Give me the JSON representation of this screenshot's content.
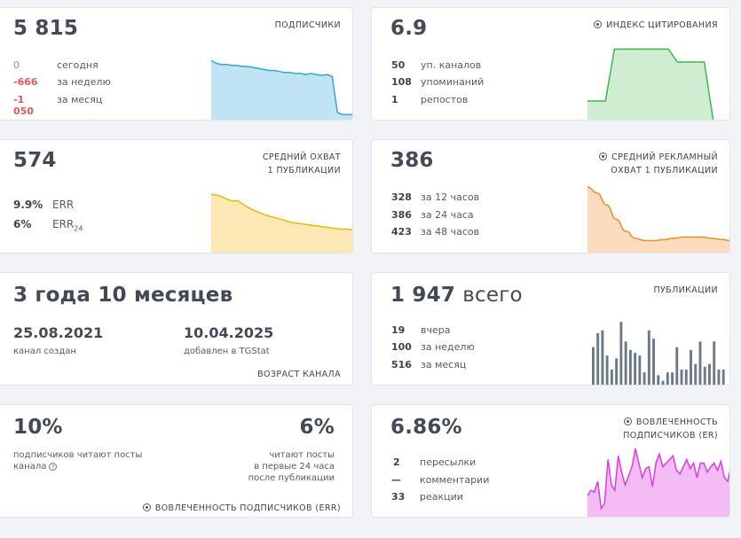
{
  "subscribers": {
    "value": "5 815",
    "caption": "ПОДПИСЧИКИ",
    "rows": [
      {
        "value": "0",
        "label": "сегодня"
      },
      {
        "value": "-666",
        "label": "за неделю"
      },
      {
        "value": "-1 050",
        "label": "за месяц"
      }
    ],
    "color": "#31a6d6",
    "series": [
      60,
      57,
      56,
      56,
      55,
      55,
      54,
      54,
      53,
      52,
      51,
      50,
      50,
      49,
      48,
      48,
      47,
      47,
      46,
      47,
      46,
      45,
      46,
      44,
      8,
      6,
      6,
      6
    ]
  },
  "citation": {
    "value": "6.9",
    "icon": "info-circle-icon",
    "caption": "ИНДЕКС ЦИТИРОВАНИЯ",
    "rows": [
      {
        "value": "50",
        "label": "уп. каналов"
      },
      {
        "value": "108",
        "label": "упоминаний"
      },
      {
        "value": "1",
        "label": "репостов"
      }
    ],
    "color": "#3db847",
    "series": [
      3,
      3,
      3,
      11,
      11,
      11,
      11,
      11,
      11,
      11,
      9,
      9,
      9,
      9,
      0,
      0,
      0
    ]
  },
  "avg_reach": {
    "value": "574",
    "caption_line1": "СРЕДНИЙ ОХВАТ",
    "caption_line2": "1 ПУБЛИКАЦИИ",
    "rows": [
      {
        "value": "9.9%",
        "label": "ERR"
      },
      {
        "value": "6%",
        "label": "ERR",
        "subscript": "24"
      }
    ],
    "color": "#f2b30b",
    "series": [
      62,
      61,
      58,
      55,
      55,
      50,
      46,
      43,
      40,
      38,
      36,
      34,
      32,
      31,
      30,
      29,
      28,
      27,
      26,
      25,
      25,
      24
    ]
  },
  "ad_reach": {
    "value": "386",
    "icon": "info-circle-icon",
    "caption_line1": "СРЕДНИЙ РЕКЛАМНЫЙ",
    "caption_line2": "ОХВАТ 1 ПУБЛИКАЦИИ",
    "rows": [
      {
        "value": "328",
        "label": "за 12 часов"
      },
      {
        "value": "386",
        "label": "за 24 часа"
      },
      {
        "value": "423",
        "label": "за 48 часов"
      }
    ],
    "color": "#f28c28",
    "series": [
      55,
      50,
      40,
      28,
      18,
      12,
      10,
      10,
      11,
      12,
      13,
      13,
      13,
      12,
      11,
      10
    ]
  },
  "age": {
    "value": "3 года 10 месяцев",
    "created_date": "25.08.2021",
    "created_label": "канал создан",
    "added_date": "10.04.2025",
    "added_label": "добавлен в TGStat",
    "caption": "ВОЗРАСТ КАНАЛА"
  },
  "publications": {
    "value": "1 947",
    "value_suffix": "всего",
    "caption": "ПУБЛИКАЦИИ",
    "rows": [
      {
        "value": "19",
        "label": "вчера"
      },
      {
        "value": "100",
        "label": "за неделю"
      },
      {
        "value": "516",
        "label": "за месяц"
      }
    ],
    "color": "#6b7888",
    "series": [
      14,
      19,
      20,
      11,
      6,
      10,
      23,
      16,
      13,
      12,
      11,
      5,
      20,
      17,
      4,
      2,
      5,
      5,
      14,
      6,
      6,
      13,
      8,
      16,
      7,
      8,
      16,
      6,
      6
    ]
  },
  "err": {
    "left_value": "10%",
    "left_text_line1": "подписчиков читают посты",
    "left_text_line2": "канала",
    "right_value": "6%",
    "right_text_line1": "читают посты",
    "right_text_line2": "в первые 24 часа",
    "right_text_line3": "после публикации",
    "icon": "info-circle-icon",
    "caption": "ВОВЛЕЧЕННОСТЬ ПОДПИСЧИКОВ (ERR)"
  },
  "er": {
    "value": "6.86%",
    "icon": "info-circle-icon",
    "caption_line1": "ВОВЛЕЧЕННОСТЬ",
    "caption_line2": "ПОДПИСЧИКОВ (ER)",
    "rows": [
      {
        "value": "2",
        "label": "пересылки"
      },
      {
        "value": "—",
        "label": "комментарии"
      },
      {
        "value": "33",
        "label": "реакции"
      }
    ],
    "color": "#e03be0",
    "series": [
      12,
      15,
      14,
      20,
      5,
      8,
      32,
      18,
      15,
      34,
      25,
      18,
      23,
      28,
      38,
      30,
      22,
      27,
      28,
      17,
      30,
      35,
      28,
      30,
      32,
      34,
      26,
      24,
      28,
      32,
      27,
      30,
      22,
      30,
      30,
      25,
      28,
      30,
      26,
      31,
      22,
      20,
      29
    ]
  }
}
